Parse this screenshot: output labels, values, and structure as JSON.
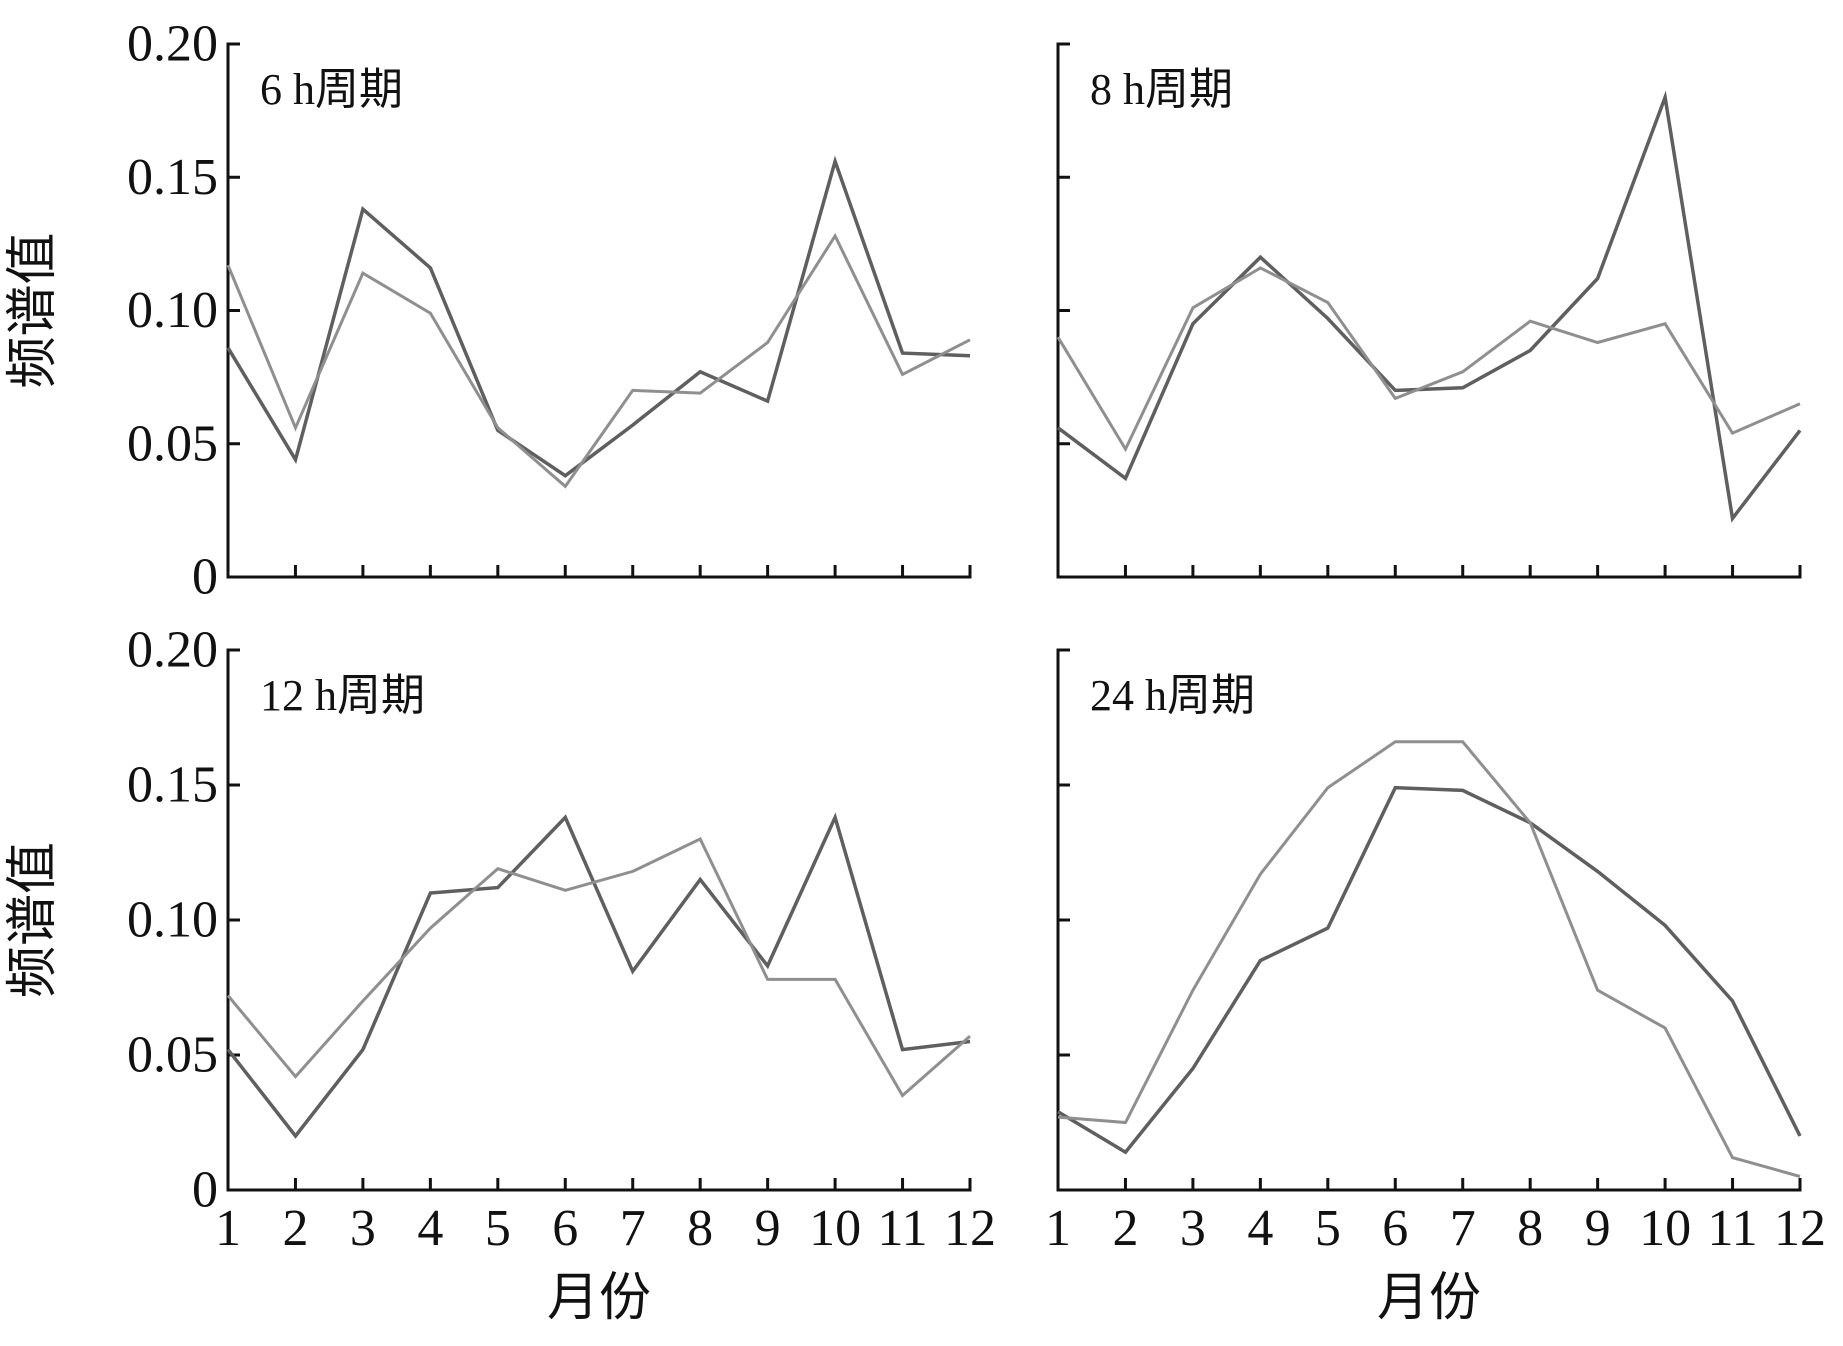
{
  "chart_data": [
    {
      "type": "line",
      "panel_label": "6 h周期",
      "xlabel": "",
      "ylabel": "频谱值",
      "x": [
        1,
        2,
        3,
        4,
        5,
        6,
        7,
        8,
        9,
        10,
        11,
        12
      ],
      "xticks": [
        "1",
        "2",
        "3",
        "4",
        "5",
        "6",
        "7",
        "8",
        "9",
        "10",
        "11",
        "12"
      ],
      "yticks": [
        "0",
        "0.05",
        "0.10",
        "0.15",
        "0.20"
      ],
      "ylim": [
        0,
        0.2
      ],
      "show_xtick_labels": false,
      "show_ytick_labels": true,
      "series": [
        {
          "color": "#5f5f5f",
          "values": [
            0.086,
            0.044,
            0.138,
            0.116,
            0.055,
            0.038,
            0.057,
            0.077,
            0.066,
            0.156,
            0.084,
            0.083
          ]
        },
        {
          "color": "#8f8f8f",
          "values": [
            0.117,
            0.056,
            0.114,
            0.099,
            0.056,
            0.034,
            0.07,
            0.069,
            0.088,
            0.128,
            0.076,
            0.089
          ]
        }
      ]
    },
    {
      "type": "line",
      "panel_label": "8 h周期",
      "xlabel": "",
      "ylabel": "",
      "x": [
        1,
        2,
        3,
        4,
        5,
        6,
        7,
        8,
        9,
        10,
        11,
        12
      ],
      "xticks": [
        "1",
        "2",
        "3",
        "4",
        "5",
        "6",
        "7",
        "8",
        "9",
        "10",
        "11",
        "12"
      ],
      "yticks": [
        "0",
        "0.05",
        "0.10",
        "0.15",
        "0.20"
      ],
      "ylim": [
        0,
        0.2
      ],
      "show_xtick_labels": false,
      "show_ytick_labels": false,
      "series": [
        {
          "color": "#5f5f5f",
          "values": [
            0.056,
            0.037,
            0.095,
            0.12,
            0.097,
            0.07,
            0.071,
            0.085,
            0.112,
            0.18,
            0.022,
            0.055
          ]
        },
        {
          "color": "#8f8f8f",
          "values": [
            0.09,
            0.048,
            0.101,
            0.116,
            0.103,
            0.067,
            0.077,
            0.096,
            0.088,
            0.095,
            0.054,
            0.065
          ]
        }
      ]
    },
    {
      "type": "line",
      "panel_label": "12 h周期",
      "xlabel": "月份",
      "ylabel": "频谱值",
      "x": [
        1,
        2,
        3,
        4,
        5,
        6,
        7,
        8,
        9,
        10,
        11,
        12
      ],
      "xticks": [
        "1",
        "2",
        "3",
        "4",
        "5",
        "6",
        "7",
        "8",
        "9",
        "10",
        "11",
        "12"
      ],
      "yticks": [
        "0",
        "0.05",
        "0.10",
        "0.15",
        "0.20"
      ],
      "ylim": [
        0,
        0.2
      ],
      "show_xtick_labels": true,
      "show_ytick_labels": true,
      "series": [
        {
          "color": "#5f5f5f",
          "values": [
            0.052,
            0.02,
            0.052,
            0.11,
            0.112,
            0.138,
            0.081,
            0.115,
            0.083,
            0.138,
            0.052,
            0.055
          ]
        },
        {
          "color": "#8f8f8f",
          "values": [
            0.072,
            0.042,
            0.07,
            0.097,
            0.119,
            0.111,
            0.118,
            0.13,
            0.078,
            0.078,
            0.035,
            0.057
          ]
        }
      ]
    },
    {
      "type": "line",
      "panel_label": "24 h周期",
      "xlabel": "月份",
      "ylabel": "",
      "x": [
        1,
        2,
        3,
        4,
        5,
        6,
        7,
        8,
        9,
        10,
        11,
        12
      ],
      "xticks": [
        "1",
        "2",
        "3",
        "4",
        "5",
        "6",
        "7",
        "8",
        "9",
        "10",
        "11",
        "12"
      ],
      "yticks": [
        "0",
        "0.05",
        "0.10",
        "0.15",
        "0.20"
      ],
      "ylim": [
        0,
        0.2
      ],
      "show_xtick_labels": true,
      "show_ytick_labels": false,
      "series": [
        {
          "color": "#5f5f5f",
          "values": [
            0.029,
            0.014,
            0.045,
            0.085,
            0.097,
            0.149,
            0.148,
            0.136,
            0.118,
            0.098,
            0.07,
            0.02
          ]
        },
        {
          "color": "#8f8f8f",
          "values": [
            0.027,
            0.025,
            0.074,
            0.117,
            0.149,
            0.166,
            0.166,
            0.136,
            0.074,
            0.06,
            0.012,
            0.005
          ]
        }
      ]
    }
  ]
}
